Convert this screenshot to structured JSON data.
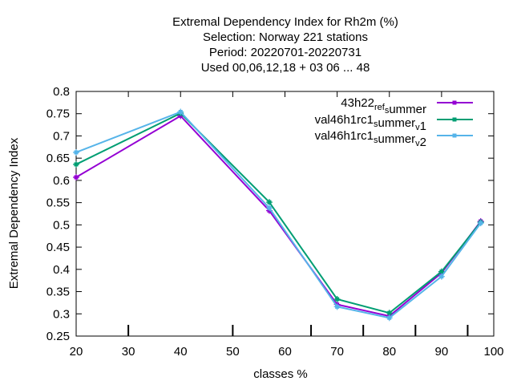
{
  "chart_data": {
    "type": "line",
    "title_lines": [
      "Extremal Dependency Index  for Rh2m (%)",
      "Selection: Norway    221 stations",
      "Period: 20220701-20220731",
      "Used  00,06,12,18  + 03 06 ... 48"
    ],
    "xlabel": "classes %",
    "ylabel": "Extremal Dependency Index",
    "xlim": [
      20,
      100
    ],
    "ylim": [
      0.25,
      0.8
    ],
    "xticks": [
      20,
      30,
      40,
      50,
      60,
      70,
      80,
      90,
      100
    ],
    "yticks": [
      0.25,
      0.3,
      0.35,
      0.4,
      0.45,
      0.5,
      0.55,
      0.6,
      0.65,
      0.7,
      0.75,
      0.8
    ],
    "x_minor_ticks_bottom": [
      30,
      50,
      65,
      75,
      85,
      95
    ],
    "grid": false,
    "legend_position": "top-right",
    "series": [
      {
        "name": "43h22_ref_summer",
        "legend": {
          "base": "43h22",
          "sub1": "ref",
          "mid": "",
          "sub2": "s",
          "rest": "ummer",
          "sub3": ""
        },
        "color": "#9400d3",
        "x": [
          20,
          40,
          57,
          70,
          80,
          90,
          97.5
        ],
        "y": [
          0.607,
          0.745,
          0.532,
          0.321,
          0.295,
          0.392,
          0.508
        ]
      },
      {
        "name": "val46h1rc1_summer_v1",
        "legend": {
          "base": "val46h1rc1",
          "sub1": "",
          "mid": "",
          "sub2": "s",
          "rest": "ummer",
          "sub3": "v",
          "tail": "1"
        },
        "color": "#009e73",
        "x": [
          20,
          40,
          57,
          70,
          80,
          90,
          97.5
        ],
        "y": [
          0.636,
          0.751,
          0.551,
          0.333,
          0.302,
          0.395,
          0.506
        ]
      },
      {
        "name": "val46h1rc1_summer_v2",
        "legend": {
          "base": "val46h1rc1",
          "sub1": "",
          "mid": "",
          "sub2": "s",
          "rest": "ummer",
          "sub3": "v",
          "tail": "2"
        },
        "color": "#56b4e9",
        "x": [
          20,
          40,
          57,
          70,
          80,
          90,
          97.5
        ],
        "y": [
          0.663,
          0.754,
          0.538,
          0.316,
          0.291,
          0.384,
          0.504
        ]
      }
    ]
  }
}
